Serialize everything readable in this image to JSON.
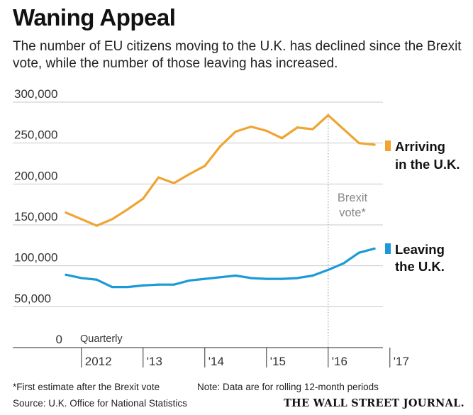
{
  "header": {
    "title": "Waning Appeal",
    "subtitle": "The number of EU citizens moving to the U.K. has declined since the Brexit vote, while the number of those leaving has increased."
  },
  "footer": {
    "footnote": "*First estimate after the Brexit vote",
    "note": "Note: Data are for rolling 12-month periods",
    "source": "Source: U.K. Office for National Statistics",
    "brand": "THE WALL STREET JOURNAL."
  },
  "chart_data": {
    "type": "line",
    "x_unit_label": "Quarterly",
    "ylim": [
      0,
      300000
    ],
    "y_ticks": [
      0,
      50000,
      100000,
      150000,
      200000,
      250000,
      300000
    ],
    "y_tick_labels": [
      "0",
      "50,000",
      "100,000",
      "150,000",
      "200,000",
      "250,000",
      "300,000"
    ],
    "x_ticks": [
      {
        "label": "2012",
        "x": "2012-Q1"
      },
      {
        "label": "'13",
        "x": "2013-Q1"
      },
      {
        "label": "'14",
        "x": "2014-Q1"
      },
      {
        "label": "'15",
        "x": "2015-Q1"
      },
      {
        "label": "'16",
        "x": "2016-Q1"
      },
      {
        "label": "'17",
        "x": "2017-Q1"
      }
    ],
    "x": [
      "2011-Q4",
      "2012-Q1",
      "2012-Q2",
      "2012-Q3",
      "2012-Q4",
      "2013-Q1",
      "2013-Q2",
      "2013-Q3",
      "2013-Q4",
      "2014-Q1",
      "2014-Q2",
      "2014-Q3",
      "2014-Q4",
      "2015-Q1",
      "2015-Q2",
      "2015-Q3",
      "2015-Q4",
      "2016-Q1",
      "2016-Q2",
      "2016-Q3",
      "2016-Q4"
    ],
    "series": [
      {
        "name": "Arriving in the U.K.",
        "label_lines": [
          "Arriving",
          "in the U.K."
        ],
        "color": "#f0a431",
        "values": [
          165000,
          157000,
          149000,
          157000,
          169000,
          182000,
          208000,
          201000,
          212000,
          222000,
          246000,
          264000,
          270000,
          265000,
          256000,
          269000,
          267000,
          284000,
          267000,
          250000,
          248000
        ]
      },
      {
        "name": "Leaving the U.K.",
        "label_lines": [
          "Leaving",
          "the U.K."
        ],
        "color": "#1b9ad6",
        "values": [
          89000,
          85000,
          83000,
          74000,
          74000,
          76000,
          77000,
          77000,
          82000,
          84000,
          86000,
          88000,
          85000,
          84000,
          84000,
          85000,
          88000,
          95000,
          103000,
          116000,
          121000
        ]
      }
    ],
    "annotations": [
      {
        "text_lines": [
          "Brexit",
          "vote*"
        ],
        "x": "2016-Q1",
        "style": "dotted-vertical-line"
      }
    ],
    "grid": true
  }
}
